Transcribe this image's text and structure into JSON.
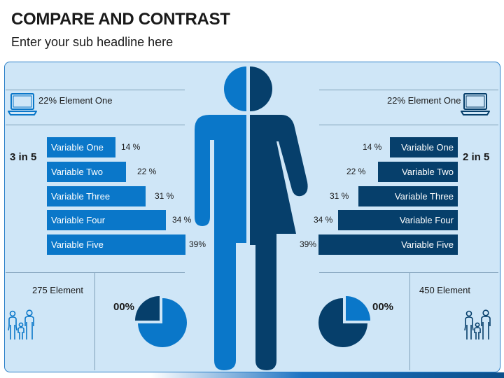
{
  "title": "COMPARE AND CONTRAST",
  "subtitle": "Enter your sub headline here",
  "left": {
    "element_label": "22% Element One",
    "ratio": "3 in 5",
    "variables": [
      {
        "label": "Variable One",
        "pct": "14 %",
        "value": 14
      },
      {
        "label": "Variable Two",
        "pct": "22 %",
        "value": 22
      },
      {
        "label": "Variable Three",
        "pct": "31 %",
        "value": 31
      },
      {
        "label": "Variable Four",
        "pct": "34 %",
        "value": 34
      },
      {
        "label": "Variable Five",
        "pct": "39%",
        "value": 39
      }
    ],
    "count_label": "275 Element",
    "pie_pct": "00%"
  },
  "right": {
    "element_label": "22% Element One",
    "ratio": "2 in 5",
    "variables": [
      {
        "label": "Variable One",
        "pct": "14 %",
        "value": 14
      },
      {
        "label": "Variable Two",
        "pct": "22 %",
        "value": 22
      },
      {
        "label": "Variable Three",
        "pct": "31 %",
        "value": 31
      },
      {
        "label": "Variable Four",
        "pct": "34 %",
        "value": 34
      },
      {
        "label": "Variable Five",
        "pct": "39%",
        "value": 39
      }
    ],
    "count_label": "450 Element",
    "pie_pct": "00%"
  },
  "icons": {
    "laptop": "laptop-icon",
    "family": "family-icon",
    "gender": "male-female-split-icon",
    "pie": "pie-chart-icon"
  },
  "colors": {
    "male": "#0a77c9",
    "female": "#063f6b",
    "panel": "#cfe6f7",
    "border": "#2a7fc8"
  }
}
